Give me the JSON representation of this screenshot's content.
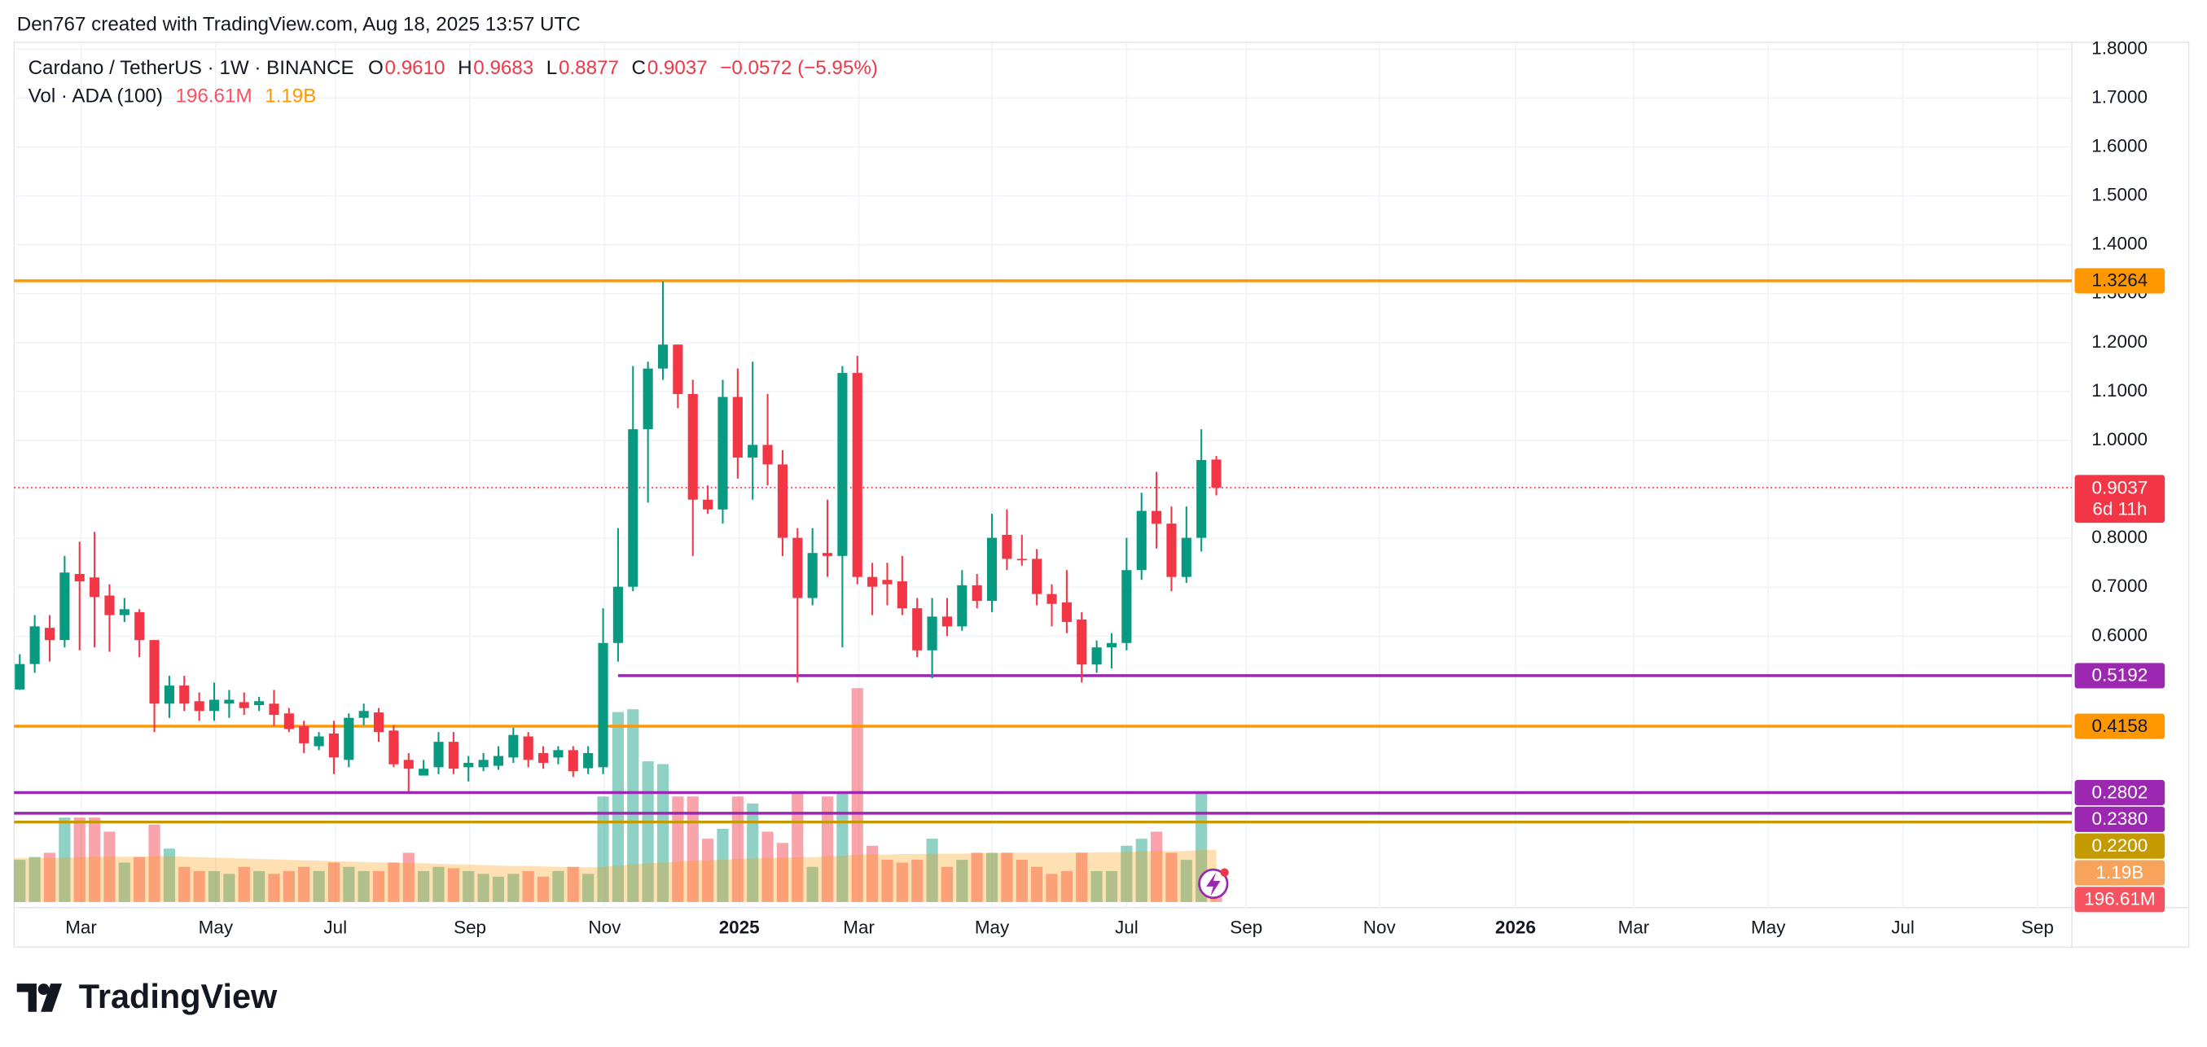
{
  "attribution": "Den767 created with TradingView.com, Aug 18, 2025 13:57 UTC",
  "brand": "TradingView",
  "header": {
    "symbol": "Cardano / TetherUS · 1W · BINANCE",
    "ohlc": [
      {
        "key": "O",
        "value": "0.9610"
      },
      {
        "key": "H",
        "value": "0.9683"
      },
      {
        "key": "L",
        "value": "0.8877"
      },
      {
        "key": "C",
        "value": "0.9037"
      }
    ],
    "change": "−0.0572 (−5.95%)",
    "volume_title": "Vol · ADA (100)"
  },
  "chart_data": {
    "type": "candlestick",
    "up_color": "#089981",
    "down_color": "#f23645",
    "open": [
      0.491,
      0.543,
      0.617,
      0.592,
      0.727,
      0.72,
      0.683,
      0.643,
      0.649,
      0.592,
      0.462,
      0.499,
      0.467,
      0.447,
      0.462,
      0.465,
      0.459,
      0.462,
      0.442,
      0.416,
      0.375,
      0.401,
      0.347,
      0.433,
      0.444,
      0.407,
      0.347,
      0.315,
      0.332,
      0.384,
      0.332,
      0.332,
      0.335,
      0.352,
      0.395,
      0.361,
      0.352,
      0.367,
      0.33,
      0.332,
      0.586,
      0.701,
      1.023,
      1.147,
      1.196,
      1.095,
      0.879,
      0.859,
      1.089,
      0.965,
      0.991,
      0.951,
      0.801,
      0.678,
      0.77,
      0.764,
      1.138,
      0.721,
      0.715,
      0.712,
      0.657,
      0.571,
      0.64,
      0.62,
      0.704,
      0.672,
      0.807,
      0.758,
      0.758,
      0.686,
      0.669,
      0.634,
      0.542,
      0.577,
      0.586,
      0.735,
      0.856,
      0.83,
      0.721,
      0.801,
      0.961
    ],
    "high": [
      0.563,
      0.643,
      0.643,
      0.764,
      0.793,
      0.813,
      0.706,
      0.678,
      0.655,
      0.592,
      0.519,
      0.519,
      0.485,
      0.505,
      0.49,
      0.485,
      0.476,
      0.49,
      0.453,
      0.427,
      0.404,
      0.427,
      0.442,
      0.462,
      0.453,
      0.418,
      0.361,
      0.347,
      0.404,
      0.404,
      0.355,
      0.361,
      0.375,
      0.413,
      0.404,
      0.375,
      0.375,
      0.375,
      0.375,
      0.657,
      0.821,
      1.152,
      1.161,
      1.325,
      1.196,
      1.124,
      0.908,
      1.124,
      1.147,
      1.161,
      1.095,
      0.98,
      0.821,
      0.821,
      0.879,
      1.152,
      1.173,
      0.75,
      0.75,
      0.764,
      0.678,
      0.678,
      0.678,
      0.735,
      0.727,
      0.85,
      0.859,
      0.807,
      0.778,
      0.706,
      0.735,
      0.649,
      0.591,
      0.606,
      0.801,
      0.893,
      0.936,
      0.865,
      0.865,
      1.023,
      0.9683
    ],
    "low": [
      0.49,
      0.525,
      0.548,
      0.577,
      0.571,
      0.577,
      0.568,
      0.629,
      0.557,
      0.404,
      0.433,
      0.447,
      0.427,
      0.427,
      0.433,
      0.439,
      0.447,
      0.416,
      0.404,
      0.361,
      0.367,
      0.318,
      0.332,
      0.418,
      0.384,
      0.332,
      0.283,
      0.318,
      0.318,
      0.318,
      0.303,
      0.324,
      0.327,
      0.341,
      0.332,
      0.329,
      0.338,
      0.312,
      0.318,
      0.318,
      0.548,
      0.692,
      0.873,
      1.124,
      1.066,
      0.764,
      0.85,
      0.83,
      0.922,
      0.879,
      0.908,
      0.764,
      0.505,
      0.663,
      0.721,
      0.577,
      0.706,
      0.643,
      0.663,
      0.643,
      0.557,
      0.514,
      0.6,
      0.611,
      0.657,
      0.649,
      0.735,
      0.744,
      0.663,
      0.62,
      0.606,
      0.505,
      0.525,
      0.534,
      0.571,
      0.715,
      0.779,
      0.692,
      0.709,
      0.773,
      0.8877
    ],
    "close": [
      0.543,
      0.62,
      0.592,
      0.73,
      0.712,
      0.68,
      0.643,
      0.655,
      0.592,
      0.462,
      0.499,
      0.462,
      0.447,
      0.47,
      0.47,
      0.453,
      0.467,
      0.439,
      0.41,
      0.381,
      0.395,
      0.352,
      0.433,
      0.447,
      0.404,
      0.338,
      0.329,
      0.329,
      0.384,
      0.329,
      0.341,
      0.347,
      0.355,
      0.398,
      0.347,
      0.341,
      0.367,
      0.324,
      0.361,
      0.586,
      0.701,
      1.023,
      1.147,
      1.196,
      1.095,
      0.879,
      0.859,
      1.089,
      0.965,
      0.991,
      0.951,
      0.801,
      0.678,
      0.77,
      0.764,
      1.138,
      0.721,
      0.701,
      0.706,
      0.657,
      0.571,
      0.64,
      0.62,
      0.704,
      0.672,
      0.801,
      0.758,
      0.755,
      0.686,
      0.666,
      0.629,
      0.542,
      0.577,
      0.586,
      0.735,
      0.856,
      0.83,
      0.721,
      0.801,
      0.96,
      0.9037
    ],
    "volume": [
      960000000.0,
      1024000000.0,
      1120000000.0,
      1920000000.0,
      1920000000.0,
      1920000000.0,
      1600000000.0,
      896000000.0,
      1024000000.0,
      1760000000.0,
      1216000000.0,
      800000000.0,
      704000000.0,
      704000000.0,
      640000000.0,
      800000000.0,
      704000000.0,
      640000000.0,
      704000000.0,
      800000000.0,
      704000000.0,
      896000000.0,
      800000000.0,
      704000000.0,
      704000000.0,
      896000000.0,
      1120000000.0,
      704000000.0,
      800000000.0,
      768000000.0,
      704000000.0,
      640000000.0,
      576000000.0,
      640000000.0,
      704000000.0,
      576000000.0,
      704000000.0,
      800000000.0,
      640000000.0,
      2400000000.0,
      4320000000.0,
      4384000000.0,
      3200000000.0,
      3136000000.0,
      2400000000.0,
      2400000000.0,
      1440000000.0,
      1664000000.0,
      2400000000.0,
      2240000000.0,
      1600000000.0,
      1344000000.0,
      2496000000.0,
      800000000.0,
      2400000000.0,
      2496000000.0,
      4864000000.0,
      1280000000.0,
      960000000.0,
      896000000.0,
      960000000.0,
      1440000000.0,
      800000000.0,
      960000000.0,
      1120000000.0,
      1120000000.0,
      1120000000.0,
      960000000.0,
      800000000.0,
      640000000.0,
      704000000.0,
      1120000000.0,
      704000000.0,
      704000000.0,
      1280000000.0,
      1440000000.0,
      1600000000.0,
      1120000000.0,
      960000000.0,
      2496000000.0,
      196610000
    ],
    "volume_label": "196.61M",
    "volume_ma": [
      1000000000.0,
      1000000000.0,
      1000000000.0,
      1010000000.0,
      1020000000.0,
      1030000000.0,
      1030000000.0,
      1030000000.0,
      1030000000.0,
      1040000000.0,
      1040000000.0,
      1030000000.0,
      1020000000.0,
      1010000000.0,
      1000000000.0,
      990000000.0,
      980000000.0,
      970000000.0,
      960000000.0,
      950000000.0,
      940000000.0,
      930000000.0,
      920000000.0,
      910000000.0,
      900000000.0,
      900000000.0,
      890000000.0,
      880000000.0,
      870000000.0,
      860000000.0,
      850000000.0,
      840000000.0,
      830000000.0,
      820000000.0,
      820000000.0,
      810000000.0,
      800000000.0,
      800000000.0,
      790000000.0,
      800000000.0,
      830000000.0,
      860000000.0,
      880000000.0,
      900000000.0,
      920000000.0,
      940000000.0,
      950000000.0,
      960000000.0,
      980000000.0,
      990000000.0,
      1000000000.0,
      1010000000.0,
      1020000000.0,
      1020000000.0,
      1040000000.0,
      1050000000.0,
      1080000000.0,
      1080000000.0,
      1080000000.0,
      1090000000.0,
      1090000000.0,
      1100000000.0,
      1100000000.0,
      1100000000.0,
      1110000000.0,
      1110000000.0,
      1120000000.0,
      1120000000.0,
      1120000000.0,
      1120000000.0,
      1120000000.0,
      1130000000.0,
      1130000000.0,
      1130000000.0,
      1140000000.0,
      1150000000.0,
      1160000000.0,
      1160000000.0,
      1160000000.0,
      1180000000.0,
      1190000000.0
    ],
    "volume_ma_label": "1.19B",
    "volume_ma_color": "#ff9800",
    "vlim": [
      0,
      6080000000.0
    ],
    "countdown": "6d 11h",
    "levels": [
      {
        "value": 1.3264,
        "color": "#ff9800",
        "text_color": "#131722"
      },
      {
        "value": 0.5192,
        "color": "#9c27b0",
        "text_color": "#ffffff",
        "x_start": 40
      },
      {
        "value": 0.4158,
        "color": "#ff9800",
        "text_color": "#131722"
      },
      {
        "value": 0.2802,
        "color": "#9c27b0",
        "text_color": "#ffffff"
      },
      {
        "value": 0.238,
        "label": "0.2380",
        "color": "#9c27b0",
        "text_color": "#ffffff"
      },
      {
        "value": 0.22,
        "label": "0.2200",
        "color": "#c49a00",
        "text_color": "#ffffff"
      }
    ],
    "ylim": [
      0.045,
      1.814
    ],
    "yticks": [
      {
        "value": 1.8,
        "label": "1.8000"
      },
      {
        "value": 1.7,
        "label": "1.7000"
      },
      {
        "value": 1.6,
        "label": "1.6000"
      },
      {
        "value": 1.5,
        "label": "1.5000"
      },
      {
        "value": 1.4,
        "label": "1.4000"
      },
      {
        "value": 1.3,
        "label": "1.3000"
      },
      {
        "value": 1.2,
        "label": "1.2000"
      },
      {
        "value": 1.1,
        "label": "1.1000"
      },
      {
        "value": 1.0,
        "label": "1.0000"
      },
      {
        "value": 0.9,
        "label": "0.9000"
      },
      {
        "value": 0.8,
        "label": "0.8000"
      },
      {
        "value": 0.7,
        "label": "0.7000"
      },
      {
        "value": 0.6,
        "label": "0.6000"
      }
    ],
    "xlim": [
      -0.38,
      137.2
    ],
    "xticks": [
      {
        "value": 4.1,
        "label": "Mar"
      },
      {
        "value": 13.1,
        "label": "May"
      },
      {
        "value": 21.1,
        "label": "Jul"
      },
      {
        "value": 30.1,
        "label": "Sep"
      },
      {
        "value": 39.1,
        "label": "Nov"
      },
      {
        "value": 48.1,
        "label": "2025"
      },
      {
        "value": 56.1,
        "label": "Mar"
      },
      {
        "value": 65.0,
        "label": "May"
      },
      {
        "value": 74.0,
        "label": "Jul"
      },
      {
        "value": 82.0,
        "label": "Sep"
      },
      {
        "value": 90.9,
        "label": "Nov"
      },
      {
        "value": 100.0,
        "label": "2026"
      },
      {
        "value": 107.9,
        "label": "Mar"
      },
      {
        "value": 116.9,
        "label": "May"
      },
      {
        "value": 125.9,
        "label": "Jul"
      },
      {
        "value": 134.9,
        "label": "Sep"
      }
    ],
    "grid": true
  }
}
